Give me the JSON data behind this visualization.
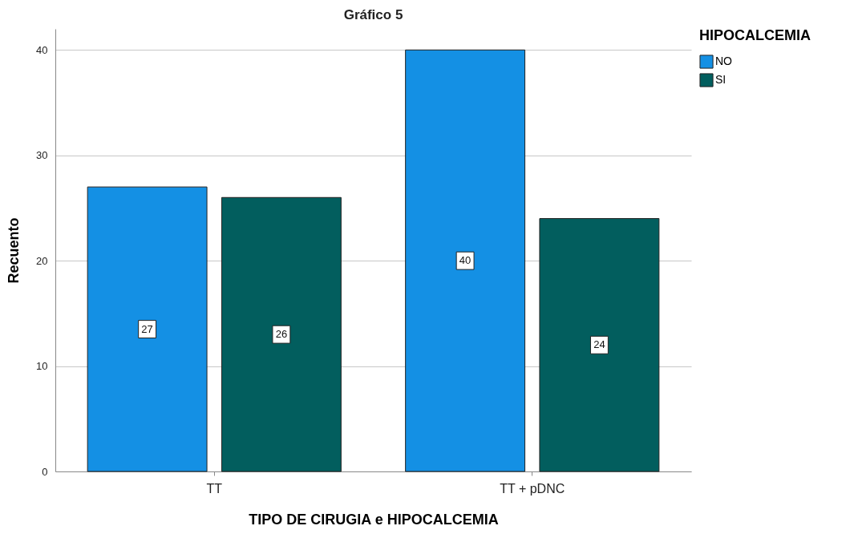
{
  "chart_data": {
    "type": "bar",
    "title": "Gráfico 5",
    "xlabel": "TIPO DE CIRUGIA e HIPOCALCEMIA",
    "ylabel": "Recuento",
    "legend_title": "HIPOCALCEMIA",
    "categories": [
      "TT",
      "TT + pDNC"
    ],
    "series": [
      {
        "name": "NO",
        "color": "#1490e4",
        "values": [
          27,
          40
        ]
      },
      {
        "name": "SI",
        "color": "#025e5e",
        "values": [
          26,
          24
        ]
      }
    ],
    "ylim": [
      0,
      42
    ],
    "yticks": [
      0,
      10,
      20,
      30,
      40
    ],
    "grid": "y",
    "legend": "top right",
    "data_labels": true
  }
}
